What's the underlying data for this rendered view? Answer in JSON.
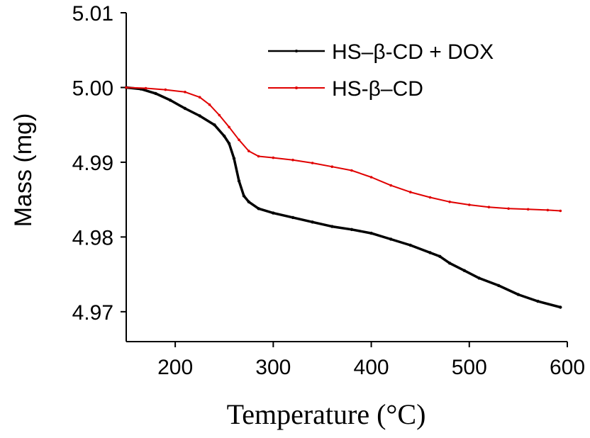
{
  "chart_data": {
    "type": "line",
    "title": "",
    "xlabel": "Temperature (°C)",
    "ylabel": "Mass (mg)",
    "xlim": [
      150,
      600
    ],
    "ylim": [
      4.966,
      5.01
    ],
    "x_ticks": [
      "200",
      "300",
      "400",
      "500",
      "600"
    ],
    "y_ticks": [
      "4.97",
      "4.98",
      "4.99",
      "5.00",
      "5.01"
    ],
    "legend_position": "top-right",
    "grid": false,
    "series": [
      {
        "name": "HS–β-CD + DOX",
        "color": "#000000",
        "points": [
          [
            150,
            5.0
          ],
          [
            165,
            4.9998
          ],
          [
            180,
            4.9992
          ],
          [
            195,
            4.9983
          ],
          [
            210,
            4.9972
          ],
          [
            225,
            4.9962
          ],
          [
            240,
            4.995
          ],
          [
            250,
            4.9935
          ],
          [
            255,
            4.9925
          ],
          [
            260,
            4.9905
          ],
          [
            265,
            4.9875
          ],
          [
            270,
            4.9855
          ],
          [
            275,
            4.9847
          ],
          [
            285,
            4.9838
          ],
          [
            300,
            4.9832
          ],
          [
            320,
            4.9826
          ],
          [
            340,
            4.982
          ],
          [
            360,
            4.9814
          ],
          [
            380,
            4.981
          ],
          [
            400,
            4.9805
          ],
          [
            420,
            4.9797
          ],
          [
            440,
            4.9789
          ],
          [
            460,
            4.9779
          ],
          [
            470,
            4.9774
          ],
          [
            480,
            4.9765
          ],
          [
            495,
            4.9755
          ],
          [
            510,
            4.9745
          ],
          [
            530,
            4.9735
          ],
          [
            550,
            4.9723
          ],
          [
            570,
            4.9714
          ],
          [
            593,
            4.9706
          ]
        ]
      },
      {
        "name": "HS-β–CD",
        "color": "#e00000",
        "points": [
          [
            150,
            5.0
          ],
          [
            170,
            4.9999
          ],
          [
            190,
            4.9997
          ],
          [
            210,
            4.9994
          ],
          [
            225,
            4.9987
          ],
          [
            235,
            4.9977
          ],
          [
            245,
            4.9963
          ],
          [
            255,
            4.9947
          ],
          [
            265,
            4.993
          ],
          [
            275,
            4.9915
          ],
          [
            285,
            4.9908
          ],
          [
            300,
            4.9906
          ],
          [
            320,
            4.9903
          ],
          [
            340,
            4.9899
          ],
          [
            360,
            4.9894
          ],
          [
            380,
            4.9889
          ],
          [
            400,
            4.988
          ],
          [
            420,
            4.9869
          ],
          [
            440,
            4.986
          ],
          [
            460,
            4.9853
          ],
          [
            480,
            4.9847
          ],
          [
            500,
            4.9843
          ],
          [
            520,
            4.984
          ],
          [
            540,
            4.9838
          ],
          [
            560,
            4.9837
          ],
          [
            580,
            4.9836
          ],
          [
            593,
            4.9835
          ]
        ]
      }
    ]
  }
}
